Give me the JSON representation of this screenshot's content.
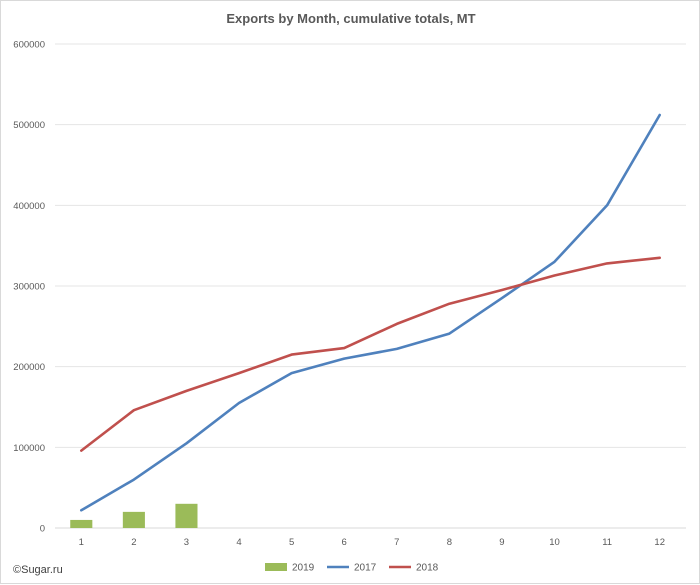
{
  "chart_data": {
    "type": "bar+line",
    "title": "Exports by Month, cumulative totals, MT",
    "categories": [
      "1",
      "2",
      "3",
      "4",
      "5",
      "6",
      "7",
      "8",
      "9",
      "10",
      "11",
      "12"
    ],
    "ylim": [
      0,
      600000
    ],
    "yticks": [
      0,
      100000,
      200000,
      300000,
      400000,
      500000,
      600000
    ],
    "ytick_labels": [
      "0",
      "100000",
      "200000",
      "300000",
      "400000",
      "500000",
      "600000"
    ],
    "grid": true,
    "legend_position": "bottom",
    "series": [
      {
        "name": "2019",
        "kind": "bar",
        "color": "#9bbb59",
        "values": [
          10000,
          20000,
          30000,
          null,
          null,
          null,
          null,
          null,
          null,
          null,
          null,
          null
        ]
      },
      {
        "name": "2017",
        "kind": "line",
        "color": "#4f81bd",
        "values": [
          22000,
          60000,
          105000,
          155000,
          192000,
          210000,
          222000,
          241000,
          285000,
          330000,
          400000,
          512000
        ]
      },
      {
        "name": "2018",
        "kind": "line",
        "color": "#c0504d",
        "values": [
          96000,
          146000,
          170000,
          192000,
          215000,
          223000,
          253000,
          278000,
          295000,
          313000,
          328000,
          335000
        ]
      }
    ]
  },
  "credit": "©Sugar.ru"
}
